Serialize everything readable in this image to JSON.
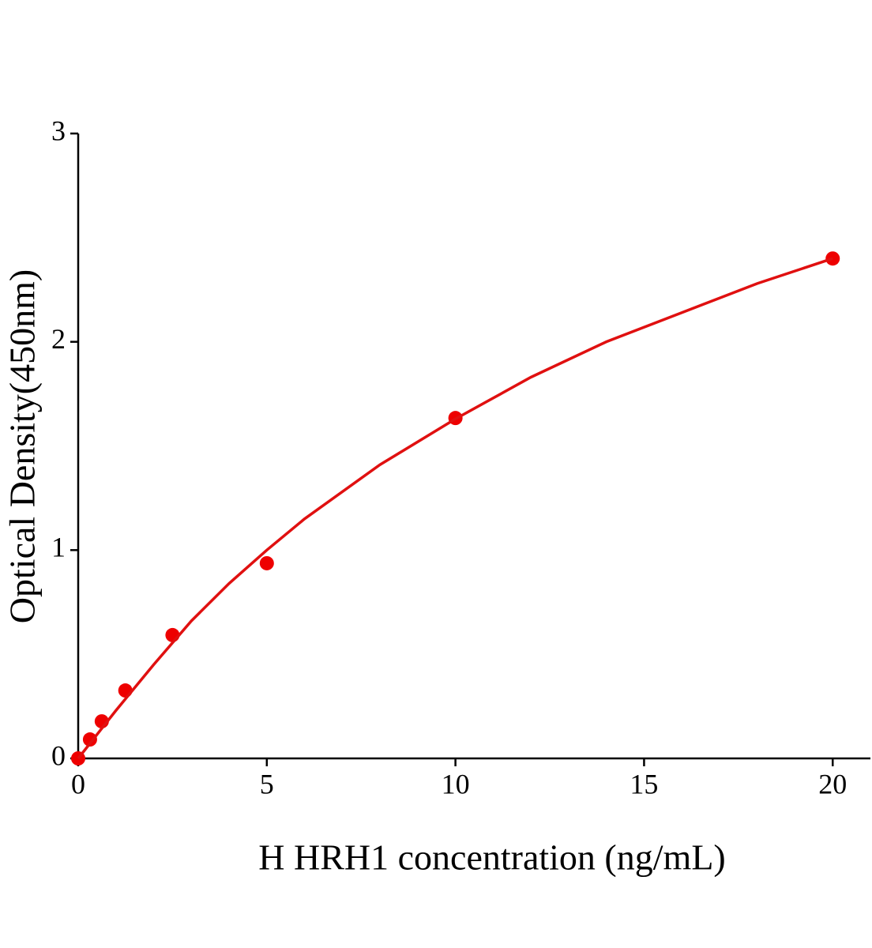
{
  "chart_data": {
    "type": "scatter",
    "x_label": "H HRH1 concentration (ng/mL)",
    "y_label": "Optical Density(450nm)",
    "xlim": [
      0,
      21
    ],
    "ylim": [
      0,
      3
    ],
    "xticks": [
      0,
      5,
      10,
      15,
      20
    ],
    "yticks": [
      0,
      1,
      2,
      3
    ],
    "series": [
      {
        "type": "scatter",
        "color": "#ee0000",
        "x": [
          0,
          0.3125,
          0.625,
          1.25,
          2.5,
          5,
          10,
          20
        ],
        "values": [
          0,
          0.091,
          0.178,
          0.326,
          0.592,
          0.937,
          1.634,
          2.4
        ]
      },
      {
        "type": "line",
        "color": "#e01010",
        "x": [
          0,
          1,
          2,
          3,
          4,
          5,
          6,
          8,
          10,
          12,
          14,
          16,
          18,
          20
        ],
        "values": [
          0,
          0.23,
          0.45,
          0.66,
          0.84,
          1.0,
          1.15,
          1.41,
          1.63,
          1.83,
          2.0,
          2.14,
          2.28,
          2.4
        ]
      }
    ]
  }
}
